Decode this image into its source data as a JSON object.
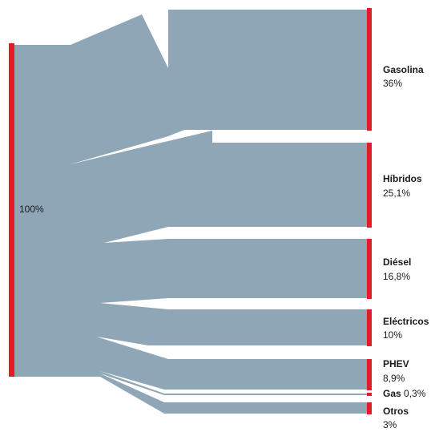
{
  "colors": {
    "flow": "#8fa6b7",
    "node_bar": "#e31b23",
    "text": "#1a1a1a"
  },
  "source": {
    "name": "",
    "value_label": "100%"
  },
  "targets": [
    {
      "name": "Gasolina",
      "value": "36%"
    },
    {
      "name": "Híbridos",
      "value": "25,1%"
    },
    {
      "name": "Diésel",
      "value": "16,8%"
    },
    {
      "name": "Eléctricos",
      "value": "10%"
    },
    {
      "name": "PHEV",
      "value": "8,9%"
    },
    {
      "name": "Gas",
      "value": "0,3%"
    },
    {
      "name": "Otros",
      "value": "3%"
    }
  ]
}
